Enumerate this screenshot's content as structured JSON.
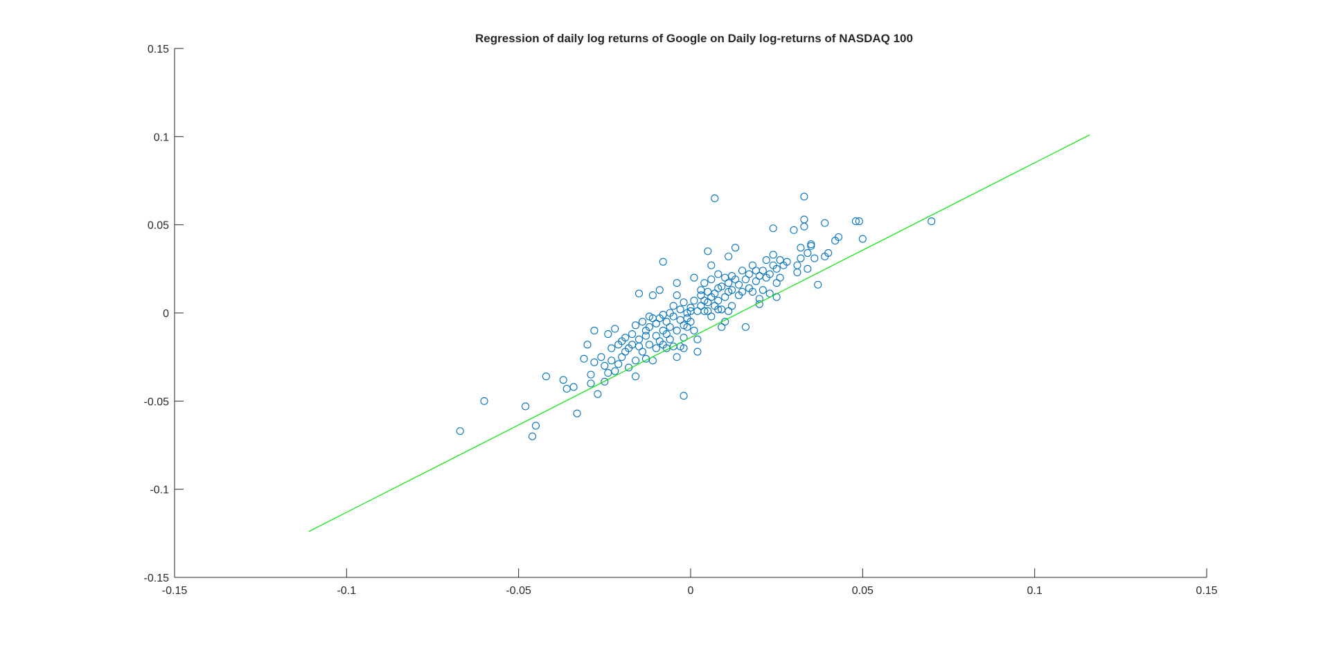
{
  "chart_data": {
    "type": "scatter",
    "title": "Regression of daily log returns of Google on Daily log-returns of NASDAQ 100",
    "xlabel": "",
    "ylabel": "",
    "xlim": [
      -0.15,
      0.15
    ],
    "ylim": [
      -0.15,
      0.15
    ],
    "xticks": [
      -0.15,
      -0.1,
      -0.05,
      0,
      0.05,
      0.1,
      0.15
    ],
    "xtick_labels": [
      "-0.15",
      "-0.1",
      "-0.05",
      "0",
      "0.05",
      "0.1",
      "0.15"
    ],
    "yticks": [
      -0.15,
      -0.1,
      -0.05,
      0,
      0.05,
      0.1,
      0.15
    ],
    "ytick_labels": [
      "-0.15",
      "-0.1",
      "-0.05",
      "0",
      "0.05",
      "0.1",
      "0.15"
    ],
    "grid": false,
    "series": [
      {
        "kind": "scatter",
        "marker": "circle",
        "color": "#0072BD",
        "points": [
          [
            -0.067,
            -0.067
          ],
          [
            -0.06,
            -0.05
          ],
          [
            -0.048,
            -0.053
          ],
          [
            -0.046,
            -0.07
          ],
          [
            -0.045,
            -0.064
          ],
          [
            -0.042,
            -0.036
          ],
          [
            -0.037,
            -0.038
          ],
          [
            -0.036,
            -0.043
          ],
          [
            -0.034,
            -0.042
          ],
          [
            -0.033,
            -0.057
          ],
          [
            -0.031,
            -0.026
          ],
          [
            -0.03,
            -0.018
          ],
          [
            -0.029,
            -0.035
          ],
          [
            -0.029,
            -0.04
          ],
          [
            -0.028,
            -0.028
          ],
          [
            -0.028,
            -0.01
          ],
          [
            -0.027,
            -0.046
          ],
          [
            -0.026,
            -0.025
          ],
          [
            -0.025,
            -0.03
          ],
          [
            -0.025,
            -0.039
          ],
          [
            -0.024,
            -0.034
          ],
          [
            -0.024,
            -0.012
          ],
          [
            -0.023,
            -0.02
          ],
          [
            -0.023,
            -0.027
          ],
          [
            -0.022,
            -0.033
          ],
          [
            -0.022,
            -0.009
          ],
          [
            -0.021,
            -0.018
          ],
          [
            -0.021,
            -0.029
          ],
          [
            -0.02,
            -0.016
          ],
          [
            -0.02,
            -0.025
          ],
          [
            -0.019,
            -0.014
          ],
          [
            -0.019,
            -0.022
          ],
          [
            -0.018,
            -0.02
          ],
          [
            -0.018,
            -0.031
          ],
          [
            -0.017,
            -0.012
          ],
          [
            -0.017,
            -0.018
          ],
          [
            -0.016,
            -0.027
          ],
          [
            -0.016,
            -0.036
          ],
          [
            -0.016,
            -0.007
          ],
          [
            -0.015,
            -0.019
          ],
          [
            -0.015,
            0.011
          ],
          [
            -0.015,
            -0.015
          ],
          [
            -0.014,
            -0.005
          ],
          [
            -0.014,
            -0.022
          ],
          [
            -0.013,
            -0.01
          ],
          [
            -0.013,
            -0.026
          ],
          [
            -0.013,
            -0.013
          ],
          [
            -0.012,
            -0.002
          ],
          [
            -0.012,
            -0.018
          ],
          [
            -0.012,
            -0.008
          ],
          [
            -0.011,
            -0.027
          ],
          [
            -0.011,
            0.01
          ],
          [
            -0.011,
            -0.003
          ],
          [
            -0.01,
            -0.02
          ],
          [
            -0.01,
            -0.013
          ],
          [
            -0.01,
            -0.006
          ],
          [
            -0.009,
            0.013
          ],
          [
            -0.009,
            -0.016
          ],
          [
            -0.009,
            -0.003
          ],
          [
            -0.008,
            -0.018
          ],
          [
            -0.008,
            -0.01
          ],
          [
            -0.008,
            -0.001
          ],
          [
            -0.008,
            0.029
          ],
          [
            -0.007,
            -0.012
          ],
          [
            -0.007,
            -0.005
          ],
          [
            -0.007,
            -0.02
          ],
          [
            -0.006,
            -0.008
          ],
          [
            -0.006,
            0.0
          ],
          [
            -0.006,
            -0.015
          ],
          [
            -0.005,
            -0.002
          ],
          [
            -0.005,
            -0.019
          ],
          [
            -0.005,
            0.004
          ],
          [
            -0.004,
            -0.01
          ],
          [
            -0.004,
            -0.025
          ],
          [
            -0.004,
            0.01
          ],
          [
            -0.004,
            0.017
          ],
          [
            -0.003,
            -0.004
          ],
          [
            -0.003,
            -0.019
          ],
          [
            -0.003,
            0.002
          ],
          [
            -0.002,
            -0.007
          ],
          [
            -0.002,
            0.006
          ],
          [
            -0.002,
            -0.014
          ],
          [
            -0.002,
            -0.02
          ],
          [
            -0.002,
            -0.047
          ],
          [
            -0.001,
            -0.003
          ],
          [
            -0.001,
            0.0
          ],
          [
            -0.001,
            -0.008
          ],
          [
            0.0,
            0.001
          ],
          [
            0.0,
            -0.005
          ],
          [
            0.0,
            0.003
          ],
          [
            0.001,
            0.02
          ],
          [
            0.001,
            0.007
          ],
          [
            0.001,
            -0.01
          ],
          [
            0.002,
            -0.015
          ],
          [
            0.002,
            0.001
          ],
          [
            0.002,
            -0.022
          ],
          [
            0.003,
            0.01
          ],
          [
            0.003,
            0.004
          ],
          [
            0.003,
            0.013
          ],
          [
            0.004,
            0.007
          ],
          [
            0.004,
            0.001
          ],
          [
            0.004,
            0.017
          ],
          [
            0.005,
            0.006
          ],
          [
            0.005,
            0.001
          ],
          [
            0.005,
            0.012
          ],
          [
            0.005,
            0.035
          ],
          [
            0.006,
            0.009
          ],
          [
            0.006,
            0.027
          ],
          [
            0.006,
            -0.002
          ],
          [
            0.006,
            0.019
          ],
          [
            0.007,
            0.065
          ],
          [
            0.007,
            0.004
          ],
          [
            0.007,
            0.011
          ],
          [
            0.008,
            0.014
          ],
          [
            0.008,
            0.002
          ],
          [
            0.008,
            0.022
          ],
          [
            0.008,
            0.007
          ],
          [
            0.009,
            -0.008
          ],
          [
            0.009,
            0.015
          ],
          [
            0.009,
            0.002
          ],
          [
            0.01,
            0.02
          ],
          [
            0.01,
            0.009
          ],
          [
            0.01,
            -0.005
          ],
          [
            0.011,
            0.012
          ],
          [
            0.011,
            0.032
          ],
          [
            0.011,
            0.001
          ],
          [
            0.011,
            0.017
          ],
          [
            0.012,
            0.004
          ],
          [
            0.012,
            0.021
          ],
          [
            0.012,
            0.013
          ],
          [
            0.013,
            0.037
          ],
          [
            0.013,
            0.019
          ],
          [
            0.014,
            0.01
          ],
          [
            0.014,
            0.016
          ],
          [
            0.015,
            0.024
          ],
          [
            0.015,
            0.012
          ],
          [
            0.016,
            0.019
          ],
          [
            0.016,
            -0.008
          ],
          [
            0.017,
            0.022
          ],
          [
            0.017,
            0.014
          ],
          [
            0.018,
            0.027
          ],
          [
            0.018,
            0.012
          ],
          [
            0.019,
            0.018
          ],
          [
            0.019,
            0.024
          ],
          [
            0.02,
            0.005
          ],
          [
            0.02,
            0.021
          ],
          [
            0.02,
            0.008
          ],
          [
            0.021,
            0.024
          ],
          [
            0.021,
            0.013
          ],
          [
            0.022,
            0.02
          ],
          [
            0.022,
            0.03
          ],
          [
            0.023,
            0.022
          ],
          [
            0.023,
            0.011
          ],
          [
            0.024,
            0.027
          ],
          [
            0.024,
            0.048
          ],
          [
            0.024,
            0.033
          ],
          [
            0.025,
            0.017
          ],
          [
            0.025,
            0.025
          ],
          [
            0.025,
            0.009
          ],
          [
            0.026,
            0.03
          ],
          [
            0.026,
            0.02
          ],
          [
            0.027,
            0.027
          ],
          [
            0.028,
            0.029
          ],
          [
            0.03,
            0.047
          ],
          [
            0.031,
            0.027
          ],
          [
            0.031,
            0.023
          ],
          [
            0.032,
            0.031
          ],
          [
            0.032,
            0.037
          ],
          [
            0.033,
            0.053
          ],
          [
            0.033,
            0.049
          ],
          [
            0.033,
            0.066
          ],
          [
            0.034,
            0.034
          ],
          [
            0.034,
            0.025
          ],
          [
            0.035,
            0.038
          ],
          [
            0.035,
            0.039
          ],
          [
            0.036,
            0.031
          ],
          [
            0.037,
            0.016
          ],
          [
            0.039,
            0.051
          ],
          [
            0.039,
            0.032
          ],
          [
            0.04,
            0.034
          ],
          [
            0.042,
            0.041
          ],
          [
            0.043,
            0.043
          ],
          [
            0.048,
            0.052
          ],
          [
            0.049,
            0.052
          ],
          [
            0.05,
            0.042
          ],
          [
            0.07,
            0.052
          ]
        ]
      },
      {
        "kind": "line",
        "color": "#00E600",
        "points": [
          [
            -0.111,
            -0.124
          ],
          [
            0.116,
            0.101
          ]
        ]
      }
    ]
  }
}
